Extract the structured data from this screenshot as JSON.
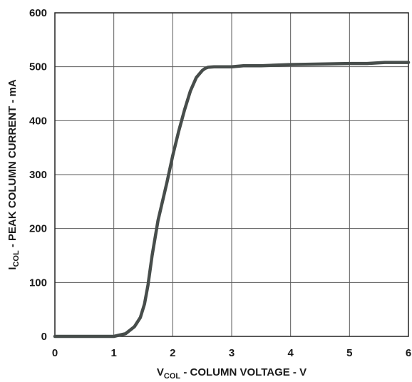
{
  "chart_data": {
    "type": "line",
    "title": "",
    "xlabel": {
      "main": "V",
      "sub": "COL",
      "rest": " - COLUMN VOLTAGE - V"
    },
    "ylabel": {
      "main": "I",
      "sub": "COL",
      "rest": " - PEAK COLUMN CURRENT - mA"
    },
    "xlim": [
      0,
      6
    ],
    "ylim": [
      0,
      600
    ],
    "xticks": [
      "0",
      "1",
      "2",
      "3",
      "4",
      "5",
      "6"
    ],
    "yticks": [
      "0",
      "100",
      "200",
      "300",
      "400",
      "500",
      "600"
    ],
    "grid": true,
    "colors": {
      "line": "#474d4b",
      "grid": "#5a5a5a",
      "frame": "#222222"
    },
    "series": [
      {
        "x": [
          0,
          1.0,
          1.2,
          1.35,
          1.45,
          1.52,
          1.58,
          1.65,
          1.75,
          1.9,
          2.0,
          2.1,
          2.2,
          2.3,
          2.4,
          2.5,
          2.55,
          2.6,
          2.7,
          3.0,
          3.2,
          3.5,
          4.0,
          4.5,
          5.0,
          5.3,
          5.6,
          6.0
        ],
        "y": [
          0,
          0,
          5,
          18,
          35,
          60,
          95,
          150,
          215,
          285,
          335,
          380,
          420,
          455,
          480,
          493,
          497,
          499,
          500,
          500,
          502,
          502,
          504,
          505,
          506,
          506,
          508,
          508
        ]
      }
    ]
  }
}
